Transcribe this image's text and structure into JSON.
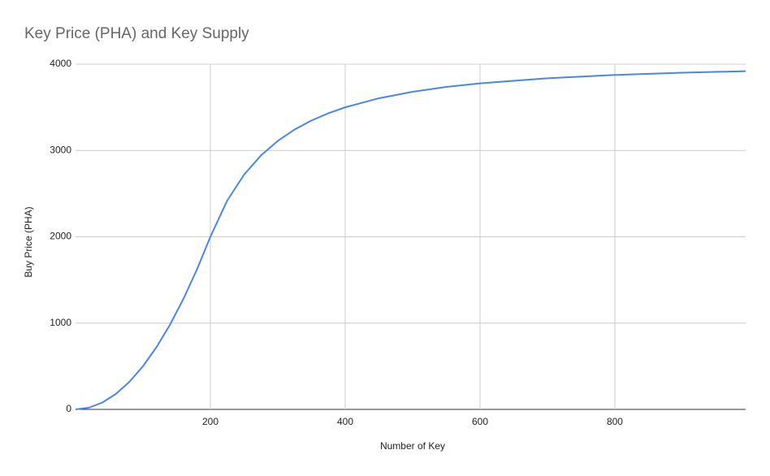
{
  "chart_data": {
    "type": "line",
    "title": "Key Price (PHA) and Key Supply",
    "x_label": "Number of Key",
    "y_label": "Buy Price (PHA)",
    "x": [
      0,
      20,
      40,
      60,
      80,
      100,
      120,
      140,
      160,
      180,
      200,
      225,
      250,
      275,
      300,
      325,
      350,
      375,
      400,
      450,
      500,
      550,
      600,
      700,
      800,
      900,
      994
    ],
    "series": [
      {
        "name": "Buy Price (PHA)",
        "color": "#4a86e8",
        "values": [
          0,
          20,
          80,
          180,
          320,
          500,
          720,
          980,
          1280,
          1620,
          2000,
          2420,
          2720,
          2942,
          3111,
          3243,
          3347,
          3431,
          3500,
          3605,
          3680,
          3736,
          3778,
          3837,
          3875,
          3901,
          3919
        ]
      }
    ],
    "xlim": [
      0,
      994
    ],
    "ylim": [
      0,
      4000
    ],
    "xticks": [
      200,
      400,
      600,
      800
    ],
    "yticks": [
      0,
      1000,
      2000,
      3000,
      4000
    ],
    "grid": true
  }
}
